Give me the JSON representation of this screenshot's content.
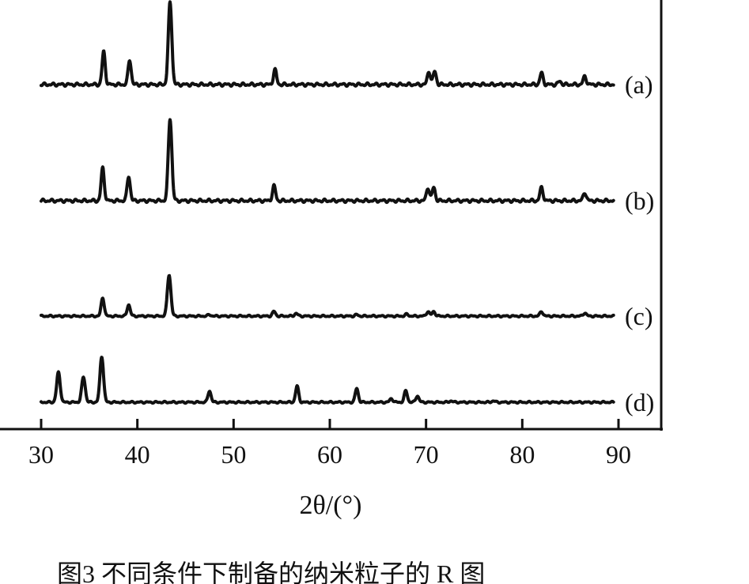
{
  "chart_data": {
    "type": "line",
    "title": "",
    "xlabel": "2θ/(°)",
    "ylabel": "",
    "xlim": [
      30,
      90
    ],
    "xticks": [
      "30",
      "40",
      "50",
      "60",
      "70",
      "80",
      "90"
    ],
    "grid": false,
    "series": [
      {
        "name": "(a)",
        "peaks": [
          {
            "x": 36.5,
            "h": 0.4
          },
          {
            "x": 39.2,
            "h": 0.3
          },
          {
            "x": 43.4,
            "h": 1.0
          },
          {
            "x": 54.3,
            "h": 0.18
          },
          {
            "x": 70.3,
            "h": 0.16
          },
          {
            "x": 70.9,
            "h": 0.16
          },
          {
            "x": 82.0,
            "h": 0.14
          },
          {
            "x": 83.9,
            "h": 0.04
          },
          {
            "x": 86.5,
            "h": 0.1
          }
        ]
      },
      {
        "name": "(b)",
        "peaks": [
          {
            "x": 36.4,
            "h": 0.4
          },
          {
            "x": 39.1,
            "h": 0.3
          },
          {
            "x": 43.4,
            "h": 1.0
          },
          {
            "x": 54.2,
            "h": 0.18
          },
          {
            "x": 70.2,
            "h": 0.16
          },
          {
            "x": 70.8,
            "h": 0.16
          },
          {
            "x": 82.0,
            "h": 0.16
          },
          {
            "x": 86.5,
            "h": 0.1
          }
        ]
      },
      {
        "name": "(c)",
        "peaks": [
          {
            "x": 36.4,
            "h": 0.4
          },
          {
            "x": 39.1,
            "h": 0.25
          },
          {
            "x": 43.3,
            "h": 0.9
          },
          {
            "x": 47.5,
            "h": 0.03
          },
          {
            "x": 54.2,
            "h": 0.1
          },
          {
            "x": 56.5,
            "h": 0.06
          },
          {
            "x": 62.8,
            "h": 0.03
          },
          {
            "x": 68.0,
            "h": 0.04
          },
          {
            "x": 70.2,
            "h": 0.1
          },
          {
            "x": 70.8,
            "h": 0.1
          },
          {
            "x": 82.0,
            "h": 0.1
          },
          {
            "x": 86.5,
            "h": 0.07
          }
        ]
      },
      {
        "name": "(d)",
        "peaks": [
          {
            "x": 31.8,
            "h": 0.65
          },
          {
            "x": 34.4,
            "h": 0.55
          },
          {
            "x": 36.3,
            "h": 1.0
          },
          {
            "x": 47.5,
            "h": 0.25
          },
          {
            "x": 56.6,
            "h": 0.35
          },
          {
            "x": 62.8,
            "h": 0.3
          },
          {
            "x": 66.4,
            "h": 0.08
          },
          {
            "x": 67.9,
            "h": 0.25
          },
          {
            "x": 69.1,
            "h": 0.14
          },
          {
            "x": 72.6,
            "h": 0.03
          },
          {
            "x": 77.0,
            "h": 0.03
          }
        ]
      }
    ],
    "caption": "图3    不同条件下制备的纳米粒子的    R    图"
  }
}
